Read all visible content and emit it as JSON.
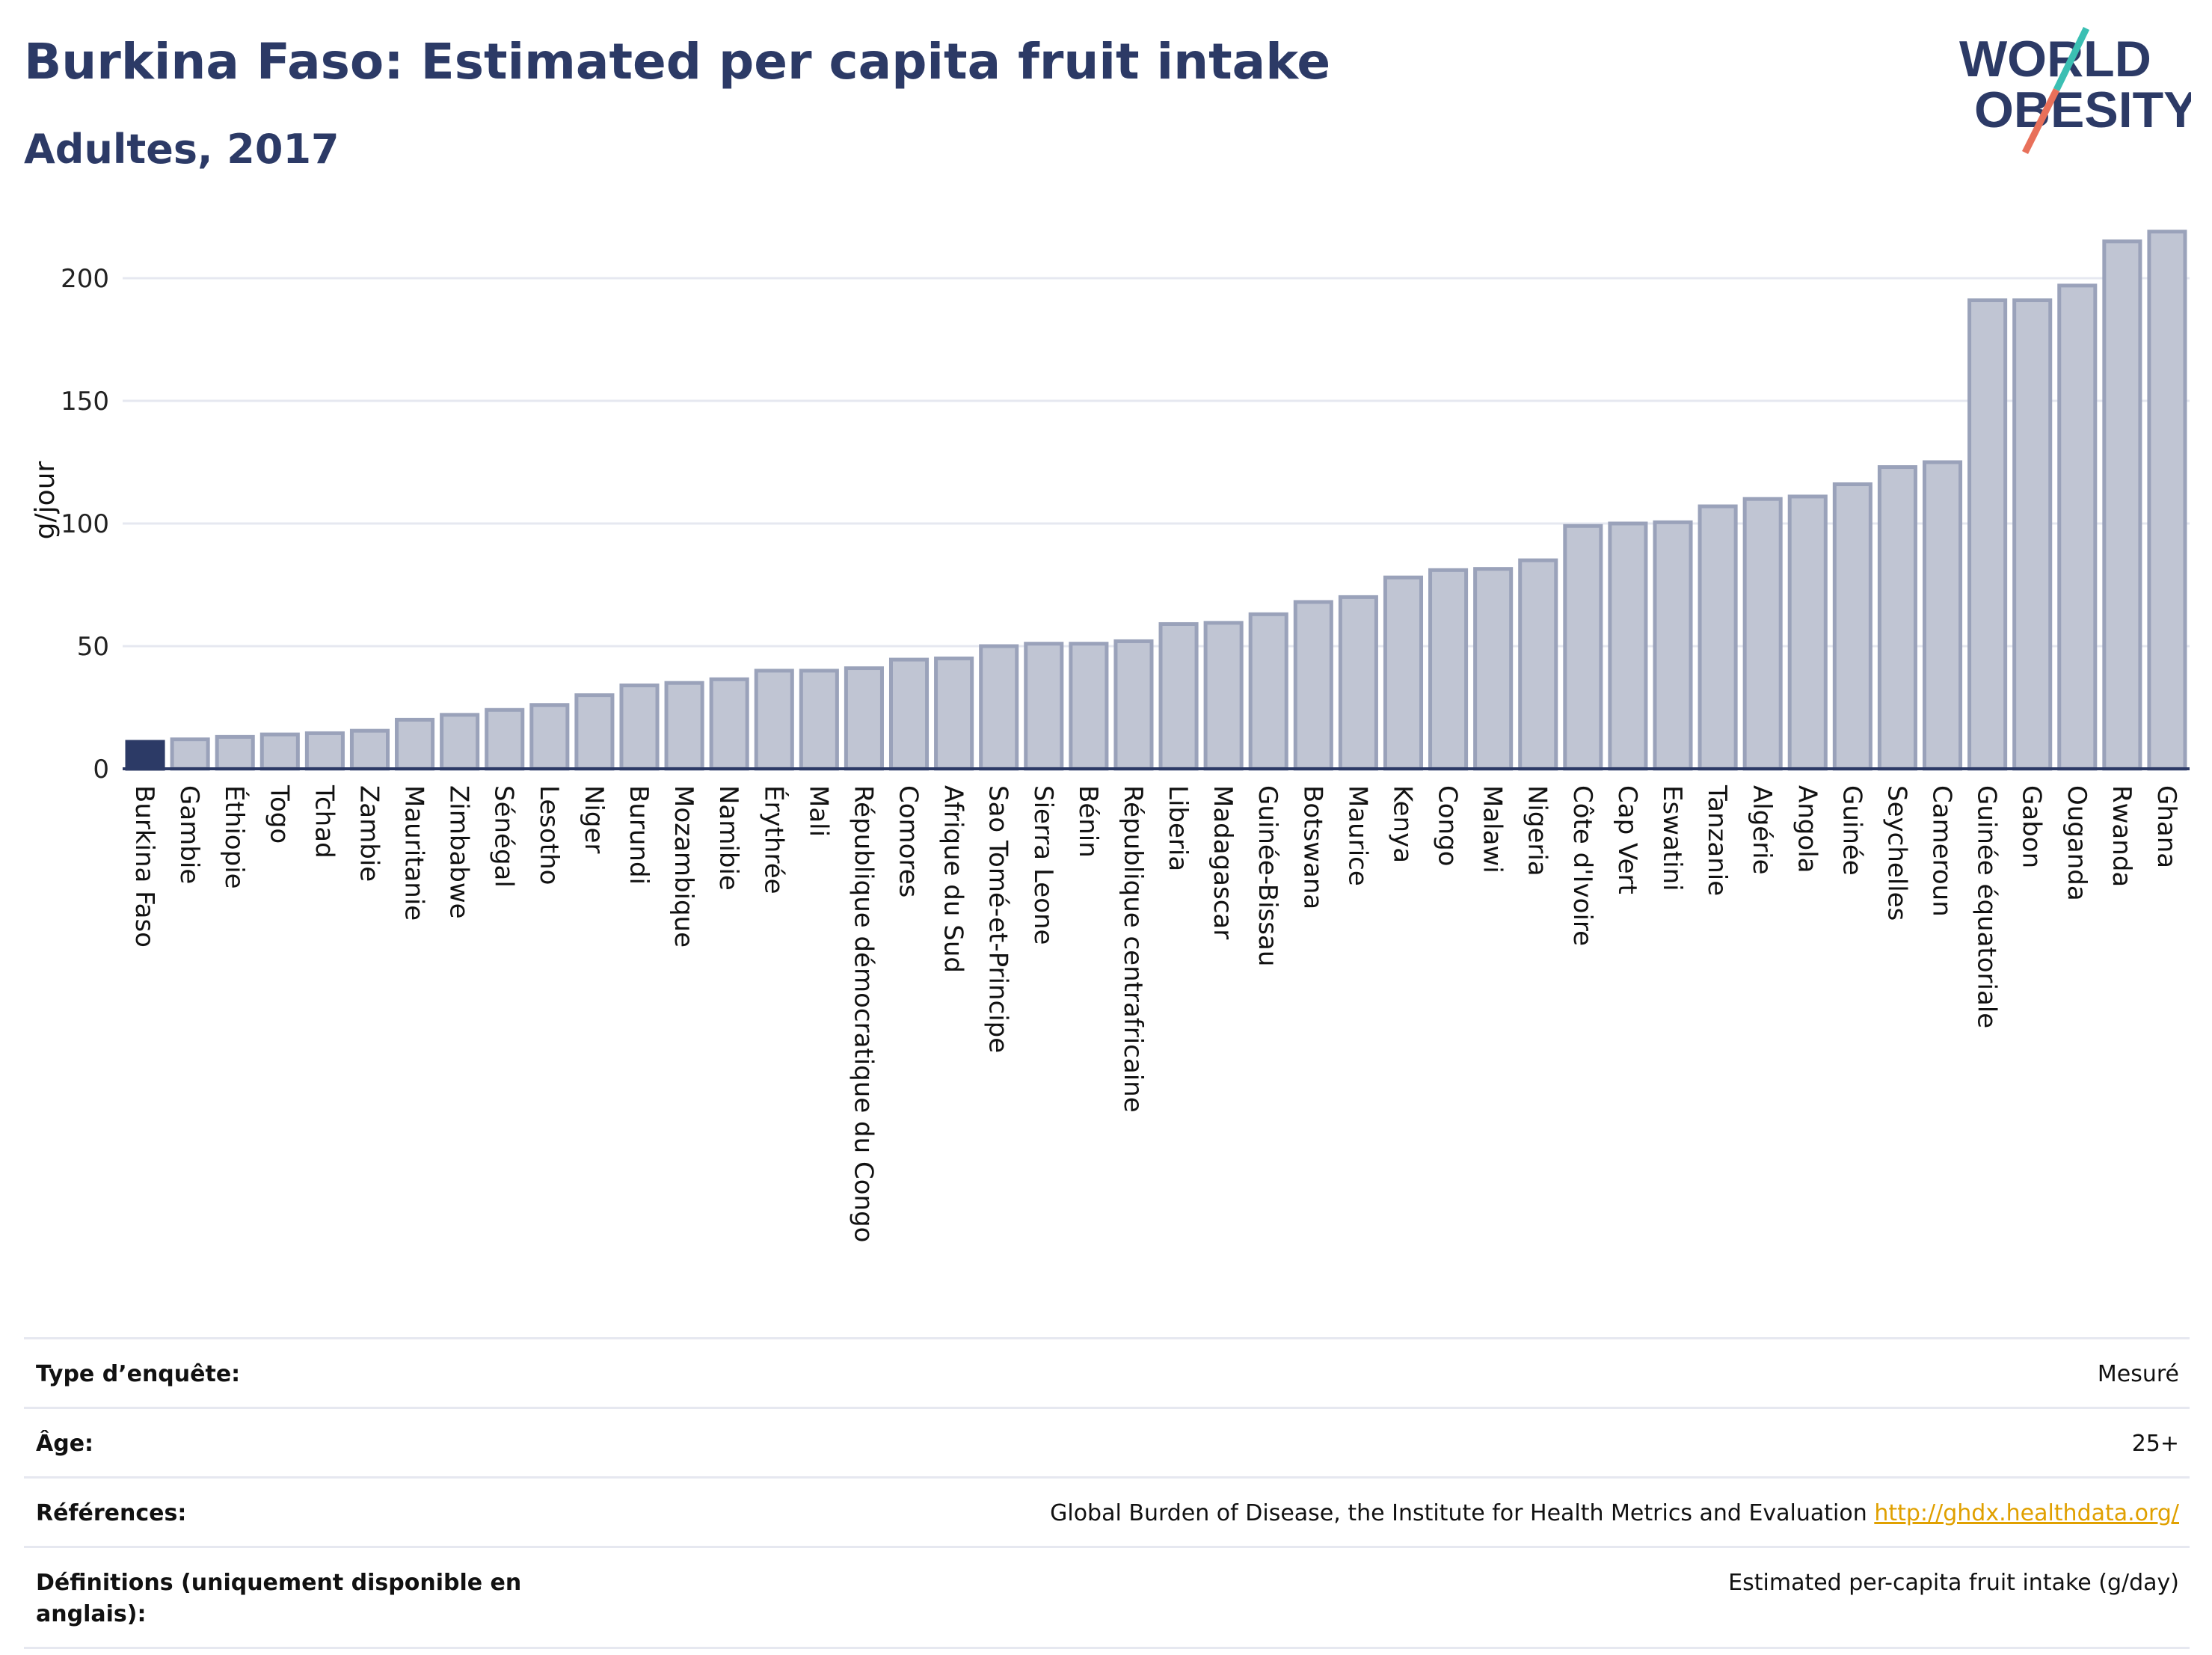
{
  "header": {
    "title": "Burkina Faso: Estimated per capita fruit intake",
    "subtitle": "Adultes, 2017"
  },
  "logo": {
    "line1": "WORLD",
    "line2": "OBESITY",
    "name": "world-obesity-logo"
  },
  "colors": {
    "highlight": "#2c3a66",
    "bar_fill": "#c0c5d3",
    "bar_stroke": "#9aa2ba",
    "grid": "#e6e8f0",
    "accent_teal": "#3bbfb3",
    "accent_red": "#e8705a"
  },
  "chart_data": {
    "type": "bar",
    "ylabel": "g/jour",
    "ylim": [
      0,
      225
    ],
    "yticks": [
      0,
      50,
      100,
      150,
      200
    ],
    "highlight": "Burkina Faso",
    "categories": [
      "Burkina Faso",
      "Gambie",
      "Éthiopie",
      "Togo",
      "Tchad",
      "Zambie",
      "Mauritanie",
      "Zimbabwe",
      "Sénégal",
      "Lesotho",
      "Niger",
      "Burundi",
      "Mozambique",
      "Namibie",
      "Érythrée",
      "Mali",
      "République démocratique du Congo",
      "Comores",
      "Afrique du Sud",
      "Sao Tomé-et-Principe",
      "Sierra Leone",
      "Bénin",
      "République centrafricaine",
      "Liberia",
      "Madagascar",
      "Guinée-Bissau",
      "Botswana",
      "Maurice",
      "Kenya",
      "Congo",
      "Malawi",
      "Nigeria",
      "Côte d'Ivoire",
      "Cap Vert",
      "Eswatini",
      "Tanzanie",
      "Algérie",
      "Angola",
      "Guinée",
      "Seychelles",
      "Cameroun",
      "Guinée équatoriale",
      "Gabon",
      "Ouganda",
      "Rwanda",
      "Ghana"
    ],
    "values": [
      11,
      12,
      13,
      14,
      14.5,
      15.5,
      20,
      22,
      24,
      26,
      30,
      34,
      35,
      36.5,
      40,
      40,
      41,
      44.5,
      45,
      50,
      51,
      51,
      52,
      59,
      59.5,
      63,
      68,
      70,
      78,
      81,
      81.5,
      85,
      99,
      100,
      100.5,
      107,
      110,
      111,
      116,
      123,
      125,
      191,
      191,
      197,
      215,
      219
    ]
  },
  "meta": {
    "rows": [
      {
        "key": "Type d’enquête:",
        "value": "Mesuré"
      },
      {
        "key": "Âge:",
        "value": "25+"
      },
      {
        "key": "Références:",
        "value": "Global Burden of Disease, the Institute for Health Metrics and Evaluation",
        "link": "http://ghdx.healthdata.org/"
      },
      {
        "key": "Définitions (uniquement disponible en anglais):",
        "value": "Estimated per-capita fruit intake (g/day)"
      }
    ]
  }
}
